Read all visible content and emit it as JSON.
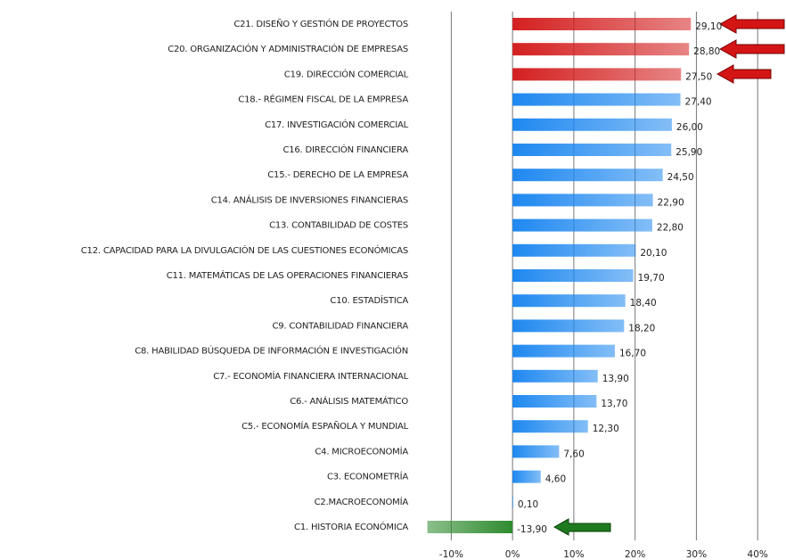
{
  "chart_data": {
    "type": "hbar",
    "categories": [
      "C21. DISEÑO Y GESTIÓN DE PROYECTOS",
      "C20. ORGANIZACIÓN Y ADMINISTRACIÓN DE EMPRESAS",
      "C19. DIRECCIÓN COMERCIAL",
      "C18.- RÉGIMEN FISCAL DE LA EMPRESA",
      "C17. INVESTIGACIÓN COMERCIAL",
      "C16. DIRECCIÓN FINANCIERA",
      "C15.- DERECHO DE LA EMPRESA",
      "C14. ANÁLISIS DE INVERSIONES FINANCIERAS",
      "C13. CONTABILIDAD DE COSTES",
      "C12. CAPACIDAD PARA LA DIVULGACIÓN DE LAS CUESTIONES ECONÓMICAS",
      "C11. MATEMÁTICAS DE LAS OPERACIONES FINANCIERAS",
      "C10. ESTADÍSTICA",
      "C9. CONTABILIDAD FINANCIERA",
      "C8. HABILIDAD BÚSQUEDA DE INFORMACIÓN E INVESTIGACIÓN",
      "C7.- ECONOMÍA FINANCIERA INTERNACIONAL",
      "C6.- ANÁLISIS MATEMÁTICO",
      "C5.- ECONOMÍA ESPAÑOLA Y MUNDIAL",
      "C4. MICROECONOMÍA",
      "C3. ECONOMETRÍA",
      "C2.MACROECONOMÍA",
      "C1. HISTORIA ECONÓMICA"
    ],
    "values": [
      29.1,
      28.8,
      27.5,
      27.4,
      26.0,
      25.9,
      24.5,
      22.9,
      22.8,
      20.1,
      19.7,
      18.4,
      18.2,
      16.7,
      13.9,
      13.7,
      12.3,
      7.6,
      4.6,
      0.1,
      -13.9
    ],
    "value_labels": [
      "29,10",
      "28,80",
      "27,50",
      "27,40",
      "26,00",
      "25,90",
      "24,50",
      "22,90",
      "22,80",
      "20,10",
      "19,70",
      "18,40",
      "18,20",
      "16,70",
      "13,90",
      "13,70",
      "12,30",
      "7,60",
      "4,60",
      "0,10",
      "-13,90"
    ],
    "colors": [
      "#d42020",
      "#d42020",
      "#d42020",
      "#1e88f0",
      "#1e88f0",
      "#1e88f0",
      "#1e88f0",
      "#1e88f0",
      "#1e88f0",
      "#1e88f0",
      "#1e88f0",
      "#1e88f0",
      "#1e88f0",
      "#1e88f0",
      "#1e88f0",
      "#1e88f0",
      "#1e88f0",
      "#1e88f0",
      "#1e88f0",
      "#1e88f0",
      "#2e8b2e"
    ],
    "xlim": [
      -15,
      40
    ],
    "xticks": [
      {
        "value": -10,
        "label": "-10%"
      },
      {
        "value": 0,
        "label": "0%"
      },
      {
        "value": 10,
        "label": "10%"
      },
      {
        "value": 20,
        "label": "20%"
      },
      {
        "value": 30,
        "label": "30%"
      },
      {
        "value": 40,
        "label": "40%"
      }
    ],
    "grid": true
  }
}
